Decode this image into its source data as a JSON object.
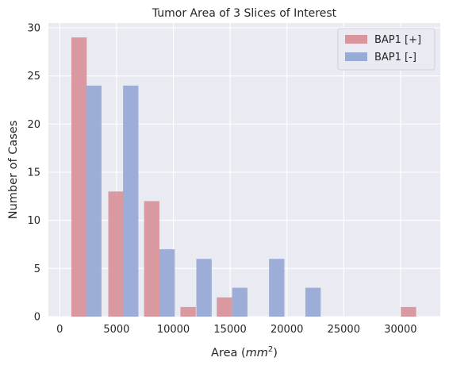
{
  "chart_data": {
    "type": "bar",
    "title": "Tumor Area of 3 Slices of Interest",
    "xlabel": {
      "prefix": "Area (",
      "math": "mm",
      "sup": "2",
      "suffix": ")"
    },
    "ylabel": "Number of Cases",
    "xlim": [
      -1000,
      33500
    ],
    "ylim": [
      0,
      30.5
    ],
    "xticks": [
      0,
      5000,
      10000,
      15000,
      20000,
      25000,
      30000
    ],
    "yticks": [
      0,
      5,
      10,
      15,
      20,
      25,
      30
    ],
    "grid": true,
    "legend_position": "top-right",
    "bar_width": 1350,
    "series": [
      {
        "name": "BAP1 [+]",
        "color": "#d9959c",
        "bars": [
          {
            "x": 1700,
            "value": 29
          },
          {
            "x": 4950,
            "value": 13
          },
          {
            "x": 8100,
            "value": 12
          },
          {
            "x": 11300,
            "value": 1
          },
          {
            "x": 14500,
            "value": 2
          },
          {
            "x": 30700,
            "value": 1
          }
        ]
      },
      {
        "name": "BAP1 [-]",
        "color": "#98abd6",
        "bars": [
          {
            "x": 3000,
            "value": 24
          },
          {
            "x": 6250,
            "value": 24
          },
          {
            "x": 9450,
            "value": 7
          },
          {
            "x": 12700,
            "value": 6
          },
          {
            "x": 15850,
            "value": 3
          },
          {
            "x": 19100,
            "value": 6
          },
          {
            "x": 22300,
            "value": 3
          }
        ]
      }
    ]
  }
}
